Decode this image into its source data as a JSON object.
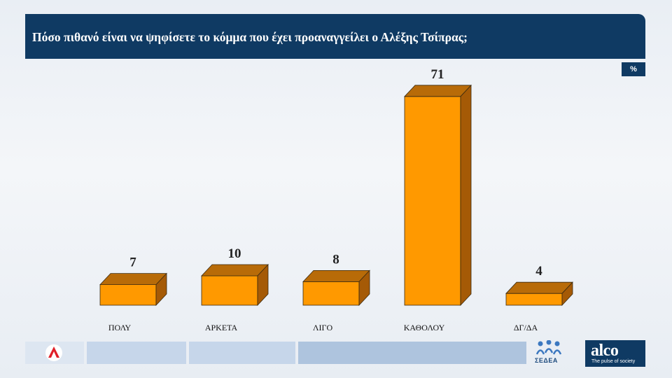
{
  "header": {
    "title": "Πόσο πιθανό είναι να ψηφίσετε το κόμμα που έχει προαναγγείλει ο Αλέξης Τσίπρας;",
    "unit": "%"
  },
  "footer": {
    "sedea_text": "ΣΕΔΕΑ",
    "alco_name": "alco",
    "alco_tagline": "The pulse of society"
  },
  "colors": {
    "header_bg": "#0f3a63",
    "bar_front": "#ff9900",
    "bar_top": "#b86b08",
    "bar_side": "#a55a06"
  },
  "chart_data": {
    "type": "bar",
    "categories": [
      "ΠΟΛΥ",
      "ΑΡΚΕΤΑ",
      "ΛΙΓΟ",
      "ΚΑΘΟΛΟΥ",
      "ΔΓ/ΔΑ"
    ],
    "values": [
      7,
      10,
      8,
      71,
      4
    ],
    "title": "Πόσο πιθανό είναι να ψηφίσετε το κόμμα που έχει προαναγγείλει ο Αλέξης Τσίπρας;",
    "unit": "%",
    "ylim": [
      0,
      80
    ],
    "grid": false,
    "legend": "none",
    "style": "3d-bar"
  }
}
